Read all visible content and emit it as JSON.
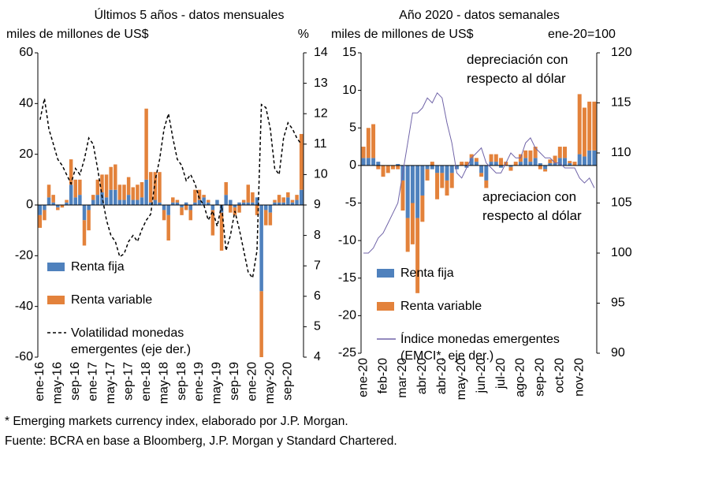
{
  "chart_data": [
    {
      "type": "bar",
      "title": "Últimos 5 años - datos mensuales",
      "y_label": "miles de millones de US$",
      "y2_label": "%",
      "categories": [
        "ene-16",
        null,
        null,
        null,
        "may-16",
        null,
        null,
        null,
        "sep-16",
        null,
        null,
        null,
        "ene-17",
        null,
        null,
        null,
        "may-17",
        null,
        null,
        null,
        "sep-17",
        null,
        null,
        null,
        "ene-18",
        null,
        null,
        null,
        "may-18",
        null,
        null,
        null,
        "sep-18",
        null,
        null,
        null,
        "ene-19",
        null,
        null,
        null,
        "may-19",
        null,
        null,
        null,
        "sep-19",
        null,
        null,
        null,
        "ene-20",
        null,
        null,
        null,
        "may-20",
        null,
        null,
        null,
        "sep-20",
        null,
        null,
        null
      ],
      "series": [
        {
          "name": "Renta fija",
          "color": "#4f81bd",
          "values": [
            -4,
            -2,
            3,
            1,
            -1,
            0,
            1,
            8,
            3,
            4,
            -6,
            -2,
            2,
            4,
            5,
            3,
            6,
            6,
            2,
            2,
            4,
            2,
            2,
            3,
            10,
            1,
            2,
            1,
            -2,
            -4,
            1,
            1,
            -1,
            1,
            -2,
            1,
            2,
            3,
            1,
            -2,
            2,
            -3,
            4,
            2,
            -1,
            1,
            1,
            1,
            1,
            3,
            -34,
            -2,
            -3,
            1,
            1,
            1,
            3,
            1,
            2,
            6
          ]
        },
        {
          "name": "Renta variable",
          "color": "#e3823b",
          "values": [
            -5,
            -4,
            5,
            3,
            -1,
            -1,
            1,
            10,
            7,
            6,
            -10,
            -8,
            2,
            6,
            7,
            9,
            9,
            10,
            6,
            6,
            7,
            5,
            6,
            6,
            28,
            12,
            11,
            12,
            -4,
            -10,
            2,
            1,
            -3,
            -2,
            -4,
            5,
            4,
            1,
            1,
            -10,
            0,
            -15,
            5,
            -3,
            -3,
            -3,
            1,
            7,
            4,
            -4,
            -26,
            -6,
            -5,
            1,
            3,
            2,
            2,
            1,
            2,
            22
          ]
        },
        {
          "name": "Volatilidad monedas emergentes (eje der.)",
          "color": "#000000",
          "axis": "y2",
          "values": [
            11.8,
            12.5,
            11.5,
            11,
            10.5,
            10.3,
            10,
            9.7,
            10.2,
            10,
            10.5,
            11.2,
            11,
            10.2,
            9.3,
            8.5,
            8,
            7.8,
            7.3,
            7.4,
            7.8,
            8,
            7.8,
            8.2,
            8.5,
            8.7,
            9.8,
            10.5,
            11.5,
            12,
            11.2,
            10.5,
            10.3,
            9.8,
            10,
            9.7,
            9.2,
            9,
            8.5,
            8.8,
            8.3,
            9,
            7.5,
            8,
            8.8,
            8.2,
            7.5,
            6.8,
            6.6,
            7.5,
            12.3,
            12.2,
            11.5,
            10.2,
            10,
            11.2,
            11.7,
            11.5,
            11.2,
            11
          ]
        }
      ],
      "ylim": [
        -60,
        60
      ],
      "yticks": [
        -60,
        -40,
        -20,
        0,
        20,
        40,
        60
      ],
      "y2lim": [
        4,
        14
      ],
      "y2ticks": [
        4,
        5,
        6,
        7,
        8,
        9,
        10,
        11,
        12,
        13,
        14
      ]
    },
    {
      "type": "bar",
      "title": "Año 2020 - datos semanales",
      "y_label": "miles de millones de US$",
      "y2_label": "ene-20=100",
      "categories": [
        "ene-20",
        null,
        null,
        null,
        "feb-20",
        null,
        null,
        null,
        "mar-20",
        null,
        null,
        null,
        "abr-20",
        null,
        null,
        null,
        "abr-20",
        null,
        null,
        null,
        "may-20",
        null,
        null,
        null,
        "jun-20",
        null,
        null,
        null,
        "jul-20",
        null,
        null,
        null,
        "ago-20",
        null,
        null,
        null,
        "sep-20",
        null,
        null,
        null,
        "oct-20",
        null,
        null,
        null,
        "nov-20",
        null,
        null,
        null
      ],
      "series": [
        {
          "name": "Renta fija",
          "color": "#4f81bd",
          "values": [
            1,
            1,
            1,
            0.5,
            0,
            0,
            0,
            0.2,
            -2,
            -7,
            -5,
            -7,
            -4,
            -0.5,
            -0.5,
            -1,
            -1,
            -2,
            -1,
            -0.5,
            0,
            -0.3,
            1,
            0.5,
            -1,
            -2,
            0.5,
            0.5,
            -0.3,
            0,
            -0.2,
            0,
            0.5,
            1,
            0.5,
            1,
            0.3,
            -0.5,
            0.3,
            0.3,
            1,
            1,
            0.3,
            0,
            1.5,
            1.2,
            2,
            2
          ]
        },
        {
          "name": "Renta variable",
          "color": "#e3823b",
          "values": [
            1.5,
            4,
            4.5,
            -0.5,
            -1.5,
            -1,
            -0.5,
            -0.5,
            -4,
            -4.5,
            -5.5,
            -10,
            -3.5,
            -1.5,
            0.5,
            -3.5,
            -2,
            -2,
            -2,
            0,
            0.5,
            0.5,
            0.5,
            0.5,
            -0.5,
            -1,
            1,
            1,
            1,
            0.5,
            -0.5,
            0.5,
            1,
            1,
            1.5,
            1.5,
            -0.5,
            -0.3,
            0.5,
            1,
            1.5,
            1.5,
            0.3,
            0.5,
            8,
            6.5,
            6.5,
            6.5
          ]
        },
        {
          "name": "Índice monedas emergentes (EMCI*, eje der.)",
          "color": "#7064a8",
          "axis": "y2",
          "values": [
            100,
            100,
            100.5,
            101.5,
            102,
            103,
            104,
            105,
            108,
            111,
            114,
            114,
            114.5,
            115.5,
            115,
            116,
            115.5,
            113,
            111,
            108,
            107.5,
            108.5,
            109.5,
            110,
            110.5,
            109,
            108.5,
            108,
            108,
            109,
            110,
            109.5,
            109.5,
            111,
            111.5,
            110.5,
            110,
            109.5,
            109.5,
            109,
            109,
            108.5,
            108.5,
            108.5,
            107.5,
            107,
            107.5,
            106.5
          ]
        }
      ],
      "ylim": [
        -25,
        15
      ],
      "yticks": [
        -25,
        -20,
        -15,
        -10,
        -5,
        0,
        5,
        10,
        15
      ],
      "y2lim": [
        90,
        120
      ],
      "y2ticks": [
        90,
        95,
        100,
        105,
        110,
        115,
        120
      ],
      "annotations": [
        "depreciación con respecto al dólar",
        "apreciacion con respecto al dólar"
      ]
    }
  ],
  "notes": [
    "* Emerging markets currency index, elaborado por J.P. Morgan.",
    "Fuente: BCRA en base a Bloomberg, J.P. Morgan y Standard Chartered."
  ]
}
